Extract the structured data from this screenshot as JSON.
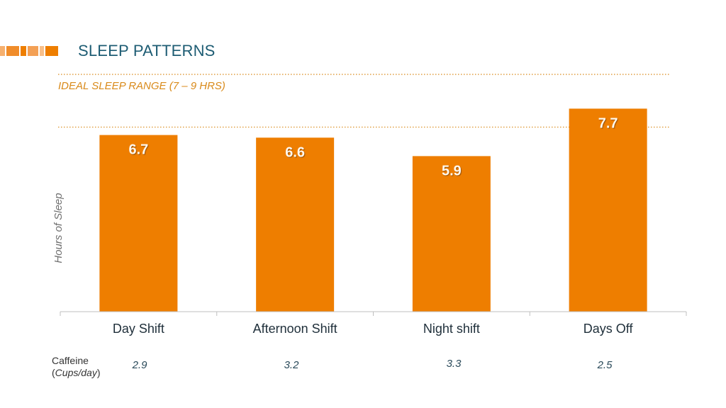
{
  "header": {
    "title": "SLEEP PATTERNS"
  },
  "colors": {
    "bar": "#EE7E00",
    "accent": "#F5A050",
    "ideal_line": "#D98A1A",
    "title": "#1D5C73"
  },
  "chart_data": {
    "type": "bar",
    "categories": [
      "Day Shift",
      "Afternoon Shift",
      "Night shift",
      "Days Off"
    ],
    "values": [
      6.7,
      6.6,
      5.9,
      7.7
    ],
    "value_labels": [
      "6.7",
      "6.6",
      "5.9",
      "7.7"
    ],
    "ylabel": "Hours of Sleep",
    "ylim": [
      0,
      9
    ],
    "grid": false,
    "reference_band": {
      "label": "IDEAL SLEEP RANGE (7 – 9 HRS)",
      "from": 7,
      "to": 9
    }
  },
  "caffeine": {
    "label": "Caffeine",
    "unit_open": "(",
    "unit": "Cups/day",
    "unit_close": ")",
    "values": [
      "2.9",
      "3.2",
      "3.3",
      "2.5"
    ]
  }
}
